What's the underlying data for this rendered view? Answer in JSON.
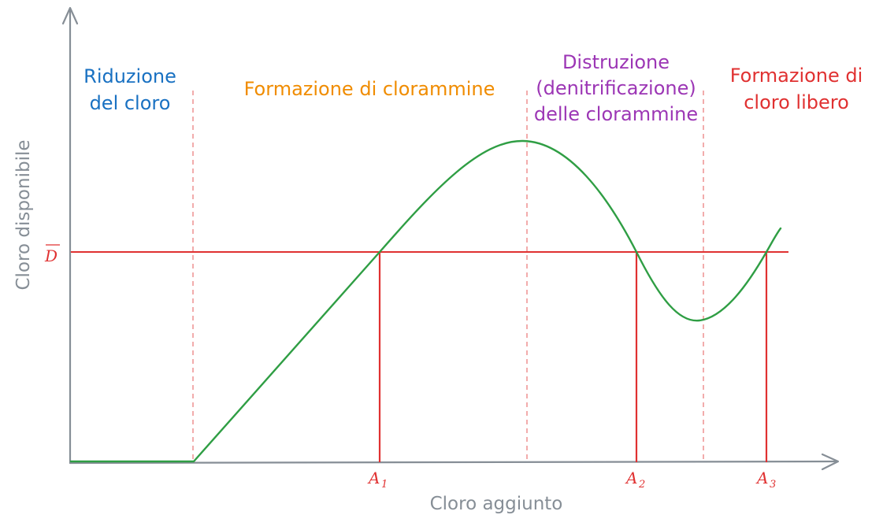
{
  "zones": [
    {
      "lines": [
        "Riduzione",
        "del cloro"
      ],
      "color": "#1971c2"
    },
    {
      "lines": [
        "Formazione di clorammine"
      ],
      "color": "#f08c00"
    },
    {
      "lines": [
        "Distruzione",
        "(denitrificazione)",
        "delle clorammine"
      ],
      "color": "#9c36b5"
    },
    {
      "lines": [
        "Formazione di",
        "cloro libero"
      ],
      "color": "#e03131"
    }
  ],
  "axes": {
    "x_title": "Cloro aggiunto",
    "y_title": "Cloro disponibile",
    "color": "#868e96"
  },
  "threshold": {
    "label": "D",
    "color": "#e03131"
  },
  "intersections": [
    {
      "label": "A",
      "sub": "1"
    },
    {
      "label": "A",
      "sub": "2"
    },
    {
      "label": "A",
      "sub": "3"
    }
  ],
  "colors": {
    "curve": "#2f9e44",
    "divider": "#e03131",
    "threshold": "#e03131"
  }
}
